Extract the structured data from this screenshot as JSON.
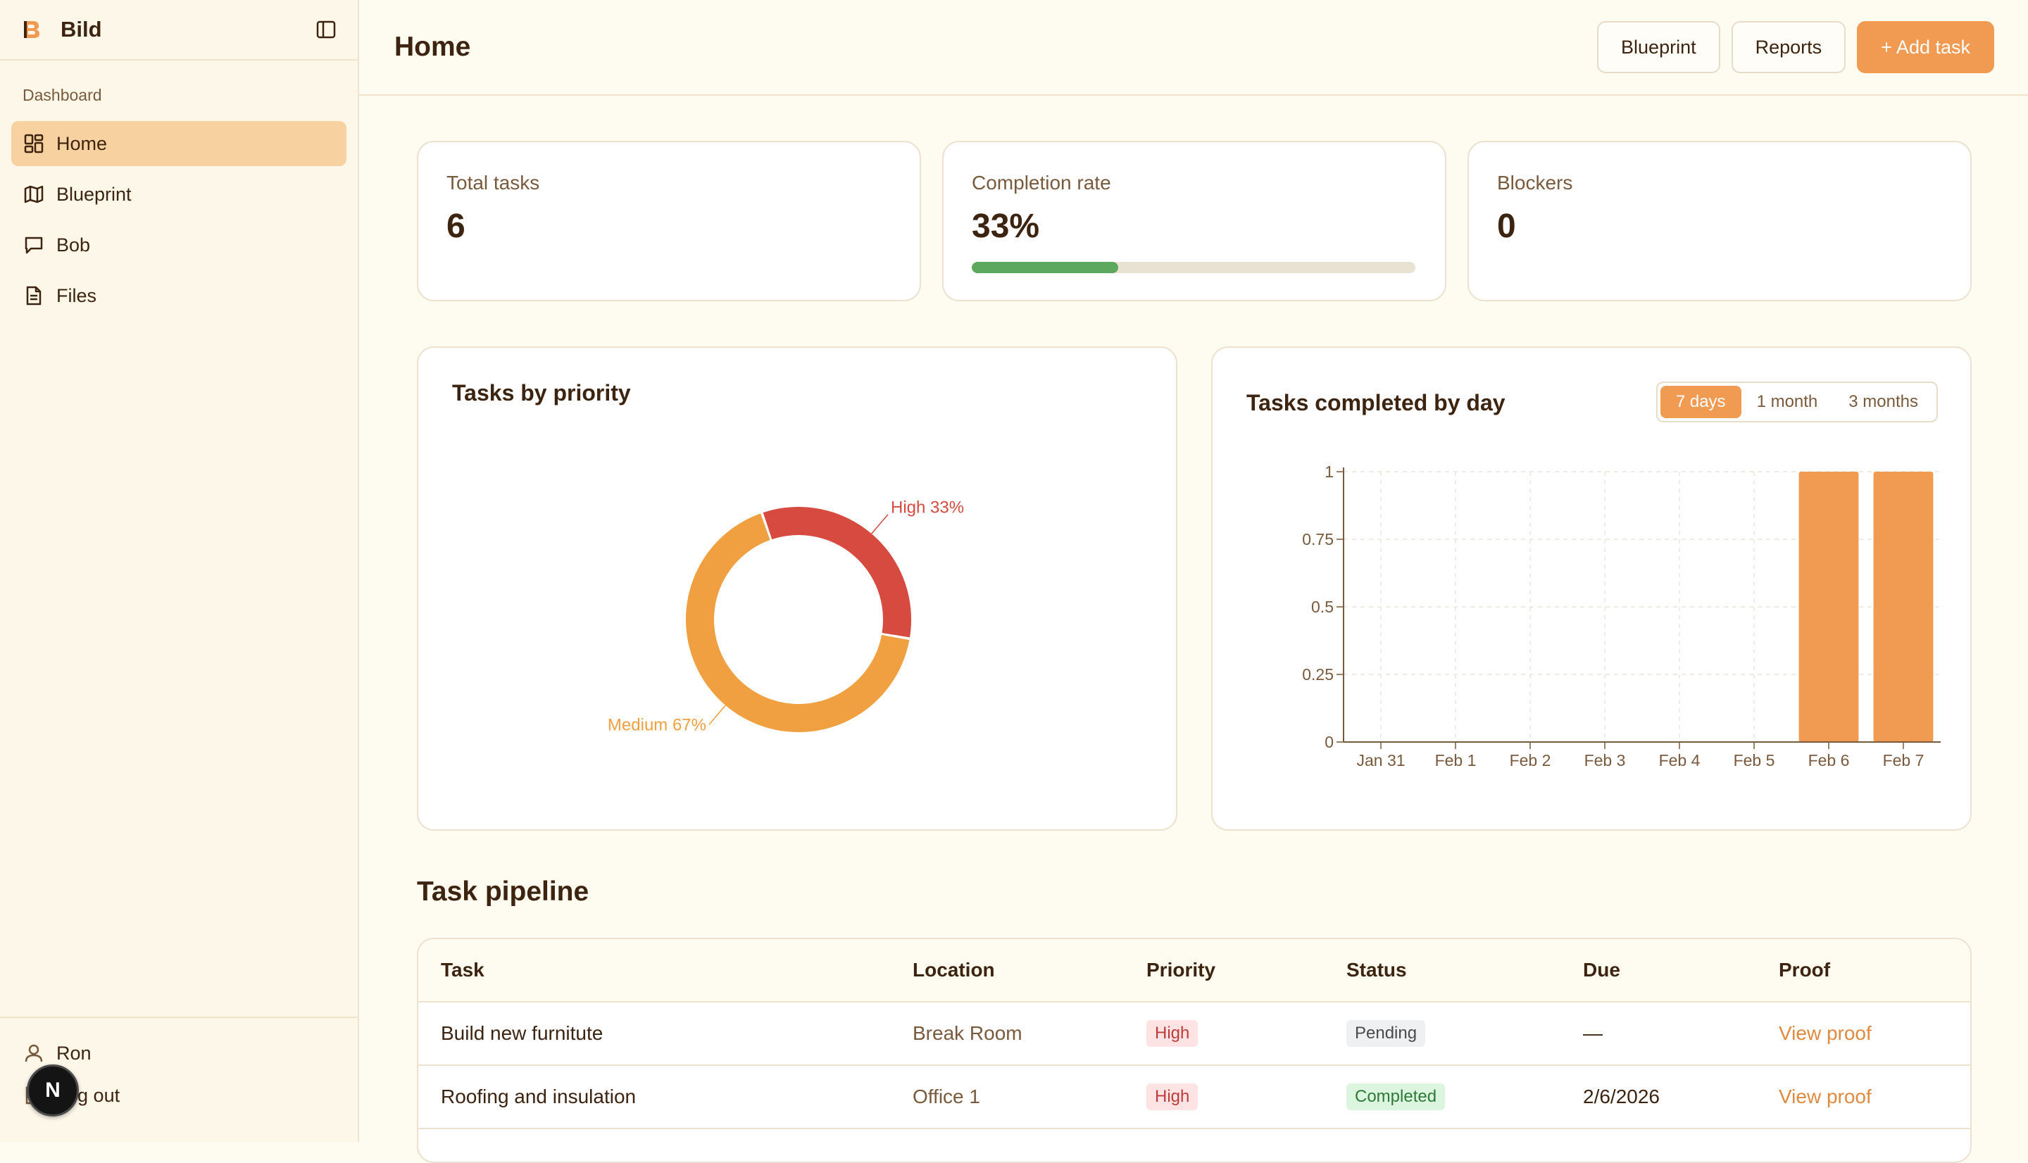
{
  "sidebar": {
    "brand": "Bild",
    "section": "Dashboard",
    "items": [
      {
        "label": "Home",
        "icon": "dashboard-grid-icon",
        "active": true
      },
      {
        "label": "Blueprint",
        "icon": "map-icon"
      },
      {
        "label": "Bob",
        "icon": "chat-icon"
      },
      {
        "label": "Files",
        "icon": "file-icon"
      }
    ],
    "user": "Ron",
    "logout": "Log out",
    "badge": "N"
  },
  "header": {
    "title": "Home",
    "blueprint": "Blueprint",
    "reports": "Reports",
    "add_task": "+ Add task"
  },
  "stats": {
    "total_label": "Total tasks",
    "total_value": "6",
    "completion_label": "Completion rate",
    "completion_value": "33%",
    "completion_fraction": 0.33,
    "blockers_label": "Blockers",
    "blockers_value": "0"
  },
  "colors": {
    "accent": "#f09a52",
    "high": "#d64a40",
    "medium": "#f0a040",
    "progress": "#5ca85c"
  },
  "chart_data": [
    {
      "type": "pie",
      "title": "Tasks by priority",
      "slices": [
        {
          "label": "High 33%",
          "value": 33,
          "color": "#d64a40"
        },
        {
          "label": "Medium 67%",
          "value": 67,
          "color": "#f0a040"
        }
      ]
    },
    {
      "type": "bar",
      "title": "Tasks completed by day",
      "categories": [
        "Jan 31",
        "Feb 1",
        "Feb 2",
        "Feb 3",
        "Feb 4",
        "Feb 5",
        "Feb 6",
        "Feb 7"
      ],
      "values": [
        0,
        0,
        0,
        0,
        0,
        0,
        1,
        1
      ],
      "yticks": [
        "0",
        "0.25",
        "0.5",
        "0.75",
        "1"
      ],
      "ylim": [
        0,
        1
      ],
      "grid": true,
      "ranges": [
        "7 days",
        "1 month",
        "3 months"
      ],
      "active_range": "7 days"
    }
  ],
  "pipeline": {
    "title": "Task pipeline",
    "columns": [
      "Task",
      "Location",
      "Priority",
      "Status",
      "Due",
      "Proof"
    ],
    "rows": [
      {
        "task": "Build new furnitute",
        "location": "Break Room",
        "priority": "High",
        "status": "Pending",
        "due": "—",
        "proof": "View proof"
      },
      {
        "task": "Roofing and insulation",
        "location": "Office 1",
        "priority": "High",
        "status": "Completed",
        "due": "2/6/2026",
        "proof": "View proof"
      }
    ]
  }
}
